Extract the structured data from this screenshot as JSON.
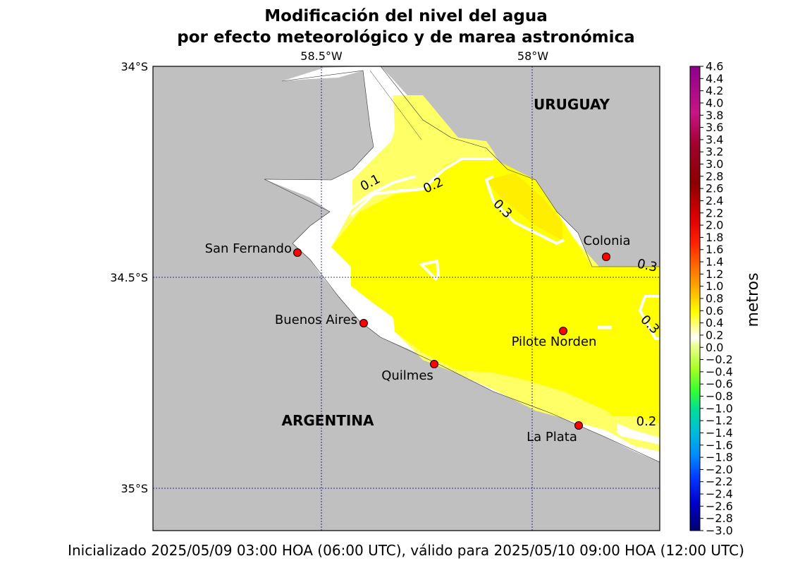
{
  "title": {
    "line1": "Modificación del nivel del agua",
    "line2": "por efecto meteorológico y de marea astronómica"
  },
  "footer": "Inicializado 2025/05/09 03:00 HOA (06:00 UTC), válido para 2025/05/10 09:00 HOA (12:00 UTC)",
  "map": {
    "lon_labels": [
      "58.5°W",
      "58°W"
    ],
    "lat_labels": [
      "34°S",
      "34.5°S",
      "35°S"
    ],
    "countries": [
      "URUGUAY",
      "ARGENTINA"
    ],
    "cities": [
      "San Fernando",
      "Colonia",
      "Buenos Aires",
      "Pilote Norden",
      "Quilmes",
      "La Plata"
    ],
    "contour_labels": [
      "0.1",
      "0.2",
      "0.3",
      "0.3",
      "0.3",
      "0.2"
    ],
    "colors": {
      "land": "#c0c0c0",
      "water": "#ffffff",
      "level_0_2": "#ffff66",
      "level_0_2_0_4": "#ffff00",
      "level_0_4": "#ffee00",
      "city": "#ff0000"
    }
  },
  "colorbar": {
    "label": "metros",
    "range": [
      -3.0,
      4.6
    ],
    "ticks": [
      "4.6",
      "4.4",
      "4.2",
      "4.0",
      "3.8",
      "3.6",
      "3.4",
      "3.2",
      "3.0",
      "2.8",
      "2.6",
      "2.4",
      "2.2",
      "2.0",
      "1.8",
      "1.6",
      "1.4",
      "1.2",
      "1.0",
      "0.8",
      "0.6",
      "0.4",
      "0.2",
      "0.0",
      "−0.2",
      "−0.4",
      "−0.6",
      "−0.8",
      "−1.0",
      "−1.2",
      "−1.4",
      "−1.6",
      "−1.8",
      "−2.0",
      "−2.2",
      "−2.4",
      "−2.6",
      "−2.8",
      "−3.0"
    ]
  }
}
